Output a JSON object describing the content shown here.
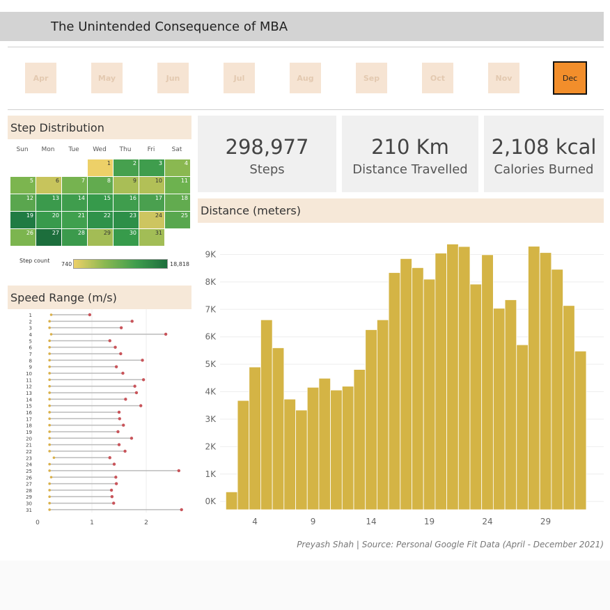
{
  "title": "The Unintended Consequence of MBA",
  "months": [
    {
      "label": "Apr",
      "active": false
    },
    {
      "label": "May",
      "active": false
    },
    {
      "label": "Jun",
      "active": false
    },
    {
      "label": "Jul",
      "active": false
    },
    {
      "label": "Aug",
      "active": false
    },
    {
      "label": "Sep",
      "active": false
    },
    {
      "label": "Oct",
      "active": false
    },
    {
      "label": "Nov",
      "active": false
    },
    {
      "label": "Dec",
      "active": true
    }
  ],
  "step_distribution": {
    "title": "Step Distribution",
    "weekdays": [
      "Sun",
      "Mon",
      "Tue",
      "Wed",
      "Thu",
      "Fri",
      "Sat"
    ],
    "days": [
      "1",
      "2",
      "3",
      "4",
      "5",
      "6",
      "7",
      "8",
      "9",
      "10",
      "11",
      "12",
      "13",
      "14",
      "15",
      "16",
      "17",
      "18",
      "19",
      "20",
      "21",
      "22",
      "23",
      "24",
      "25",
      "26",
      "27",
      "28",
      "29",
      "30",
      "31"
    ],
    "day_colors": [
      "#edd068",
      "#46a04e",
      "#3f9d4d",
      "#8ab851",
      "#7cb54f",
      "#c7c45c",
      "#76b350",
      "#62ab4f",
      "#a9be56",
      "#b2c057",
      "#6db24f",
      "#5aa64e",
      "#3b9a4c",
      "#3f9d4d",
      "#369a4b",
      "#3f9d4d",
      "#4aa04f",
      "#62ab4f",
      "#207b43",
      "#389a4c",
      "#40a04e",
      "#2f924a",
      "#2d8f48",
      "#cdc560",
      "#58a74e",
      "#7cb54f",
      "#1c6e3c",
      "#3b9a4c",
      "#a3bc55",
      "#379b4b",
      "#a2bd56"
    ],
    "legend_label": "Step count",
    "legend_min": "740",
    "legend_max": "18,818"
  },
  "kpis": [
    {
      "value": "298,977",
      "label": "Steps"
    },
    {
      "value": "210 Km",
      "label": "Distance Travelled"
    },
    {
      "value": "2,108 kcal",
      "label": "Calories Burned"
    }
  ],
  "speed_range": {
    "title": "Speed Range (m/s)",
    "x_ticks": [
      "0",
      "1",
      "2"
    ]
  },
  "distance": {
    "title": "Distance (meters)",
    "y_ticks": [
      "0K",
      "1K",
      "2K",
      "3K",
      "4K",
      "5K",
      "6K",
      "7K",
      "8K",
      "9K"
    ],
    "x_ticks": [
      "4",
      "9",
      "14",
      "19",
      "24",
      "29"
    ]
  },
  "footer": "Preyash Shah | Source: Personal Google Fit Data (April - December 2021)",
  "chart_data": [
    {
      "type": "bar",
      "title": "Distance (meters)",
      "x": [
        2,
        3,
        4,
        5,
        6,
        7,
        8,
        9,
        10,
        11,
        12,
        13,
        14,
        15,
        16,
        17,
        18,
        19,
        20,
        21,
        22,
        23,
        24,
        25,
        26,
        27,
        28,
        29,
        30,
        31,
        32
      ],
      "values": [
        350,
        3680,
        4900,
        6620,
        5600,
        3730,
        3330,
        4160,
        4490,
        4060,
        4200,
        4810,
        6260,
        6620,
        8340,
        8850,
        8520,
        8100,
        9050,
        9380,
        9290,
        7920,
        8990,
        7040,
        7350,
        5710,
        9300,
        9070,
        8460,
        7140,
        5480
      ],
      "ylim": [
        -300,
        9900
      ],
      "color": "#d4b445"
    },
    {
      "type": "scatter",
      "title": "Speed Range (m/s)",
      "categories": [
        "1",
        "2",
        "3",
        "4",
        "5",
        "6",
        "7",
        "8",
        "9",
        "10",
        "11",
        "12",
        "13",
        "14",
        "15",
        "16",
        "17",
        "18",
        "19",
        "20",
        "21",
        "22",
        "23",
        "24",
        "25",
        "26",
        "27",
        "28",
        "29",
        "30",
        "31"
      ],
      "min": [
        0.25,
        0.22,
        0.22,
        0.25,
        0.22,
        0.22,
        0.22,
        0.22,
        0.22,
        0.22,
        0.22,
        0.22,
        0.22,
        0.22,
        0.22,
        0.22,
        0.22,
        0.22,
        0.22,
        0.22,
        0.22,
        0.22,
        0.3,
        0.22,
        0.22,
        0.25,
        0.22,
        0.22,
        0.22,
        0.22,
        0.22
      ],
      "max": [
        0.96,
        1.74,
        1.54,
        2.36,
        1.33,
        1.43,
        1.53,
        1.93,
        1.45,
        1.57,
        1.95,
        1.79,
        1.82,
        1.62,
        1.9,
        1.5,
        1.51,
        1.58,
        1.48,
        1.73,
        1.5,
        1.61,
        1.33,
        1.41,
        2.6,
        1.44,
        1.45,
        1.36,
        1.37,
        1.4,
        2.65
      ],
      "xlim": [
        0,
        2.8
      ]
    }
  ]
}
